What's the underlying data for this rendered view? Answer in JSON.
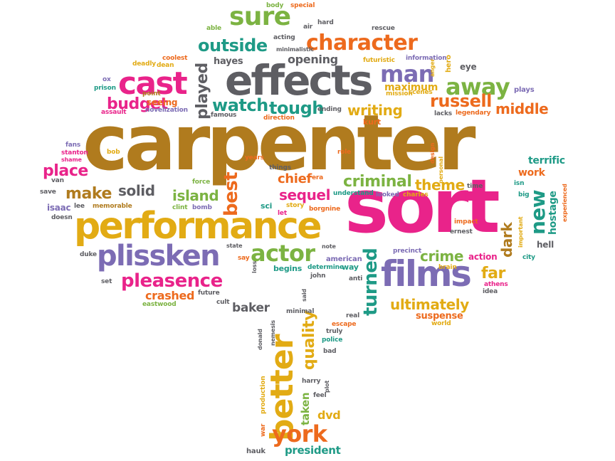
{
  "cloud": {
    "carpenter": "carpenter",
    "sort": "sort",
    "performance": "performance",
    "effects": "effects",
    "plissken": "plissken",
    "films": "films",
    "cast": "cast",
    "character": "character",
    "sure": "sure",
    "outside": "outside",
    "pleasence": "pleasence",
    "actor": "actor",
    "better": "better",
    "york": "york",
    "away": "away",
    "man": "man",
    "russell": "russell",
    "middle": "middle",
    "writing": "writing",
    "watch": "watch",
    "tough": "tough",
    "budget": "budget",
    "played": "played",
    "hayes": "hayes",
    "opening": "opening",
    "maximum": "maximum",
    "place": "place",
    "make": "make",
    "solid": "solid",
    "island": "island",
    "best": "best",
    "chief": "chief",
    "criminal": "criminal",
    "sequel": "sequel",
    "theme": "theme",
    "new": "new",
    "hostage": "hostage",
    "work": "work",
    "terrific": "terrific",
    "dark": "dark",
    "crime": "crime",
    "far": "far",
    "ultimately": "ultimately",
    "suspense": "suspense",
    "turned": "turned",
    "crashed": "crashed",
    "baker": "baker",
    "quality": "quality",
    "taken": "taken",
    "dvd": "dvd",
    "president": "president",
    "isaac": "isaac",
    "sci": "sci",
    "story": "story",
    "borgnine": "borgnine",
    "action": "action",
    "american": "american",
    "eye": "eye",
    "hero": "hero",
    "plays": "plays",
    "legendary": "legendary",
    "lacks": "lacks",
    "kurt": "kurt",
    "things": "things",
    "role": "role",
    "fans": "fans",
    "stanton": "stanton",
    "bob": "bob",
    "years": "years",
    "force": "force",
    "era": "era",
    "understand": "understand",
    "looked": "looked",
    "charles": "charles",
    "time": "time",
    "isn": "isn",
    "big": "big",
    "experienced": "experienced",
    "important": "important",
    "hell": "hell",
    "city": "city",
    "athens": "athens",
    "brain": "brain",
    "ernest": "ernest",
    "impact": "impact",
    "precinct": "precinct",
    "determine": "determine",
    "way": "way",
    "note": "note",
    "begins": "begins",
    "loss": "loss",
    "say": "say",
    "state": "state",
    "let": "let",
    "bomb": "bomb",
    "clint": "clint",
    "memorable": "memorable",
    "lee": "lee",
    "van": "van",
    "save": "save",
    "doesn": "doesn",
    "duke": "duke",
    "set": "set",
    "eastwood": "eastwood",
    "future": "future",
    "cult": "cult",
    "john": "john",
    "said": "said",
    "anti": "anti",
    "real": "real",
    "minimal": "minimal",
    "nemesis": "nemesis",
    "donald": "donald",
    "truly": "truly",
    "escape": "escape",
    "police": "police",
    "bad": "bad",
    "harry": "harry",
    "plot": "plot",
    "feel": "feel",
    "production": "production",
    "war": "war",
    "hauk": "hauk",
    "idea": "idea",
    "world": "world",
    "shame": "shame",
    "deadly": "deadly",
    "coolest": "coolest",
    "dean": "dean",
    "ox": "ox",
    "prison": "prison",
    "point": "point",
    "assault": "assault",
    "seeing": "seeing",
    "novelization": "novelization",
    "famous": "famous",
    "direction": "direction",
    "ending": "ending",
    "able": "able",
    "acting": "acting",
    "minimalistic": "minimalistic",
    "air": "air",
    "hard": "hard",
    "body": "body",
    "special": "special",
    "rescue": "rescue",
    "futuristic": "futuristic",
    "information": "information",
    "anger": "anger",
    "mission": "mission",
    "scenes": "scenes",
    "design": "design",
    "personal": "personal"
  }
}
